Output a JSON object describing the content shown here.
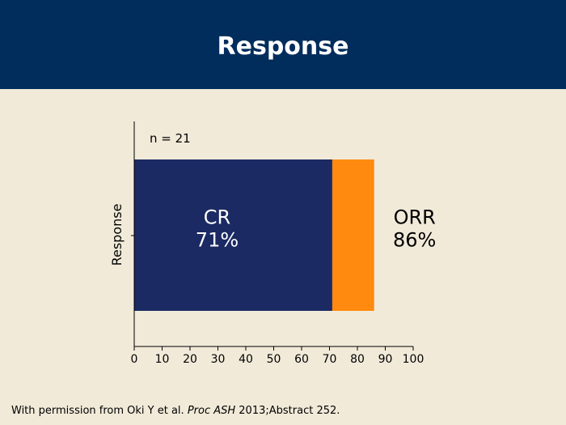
{
  "slide": {
    "title": "Response"
  },
  "chart_data": {
    "type": "bar",
    "orientation": "horizontal",
    "stacked": true,
    "annotation": "n = 21",
    "ylabel": "Response",
    "xlim": [
      0,
      100
    ],
    "x_ticks": [
      0,
      10,
      20,
      30,
      40,
      50,
      60,
      70,
      80,
      90,
      100
    ],
    "segments": [
      {
        "label": "CR",
        "value_label": "71%",
        "start": 0,
        "end": 71,
        "color": "#1b2a63"
      },
      {
        "label": "ORR",
        "value_label": "86%",
        "start": 71,
        "end": 86,
        "color": "#ff8a0f"
      }
    ],
    "grid": false,
    "legend": "none"
  },
  "footer": {
    "prefix": "With permission from Oki Y et al. ",
    "journal": "Proc ASH",
    "suffix": " 2013;Abstract 252."
  }
}
